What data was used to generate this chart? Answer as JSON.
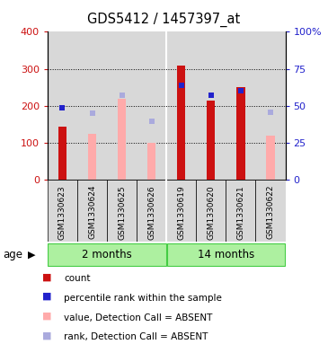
{
  "title": "GDS5412 / 1457397_at",
  "samples": [
    "GSM1330623",
    "GSM1330624",
    "GSM1330625",
    "GSM1330626",
    "GSM1330619",
    "GSM1330620",
    "GSM1330621",
    "GSM1330622"
  ],
  "count_values": [
    145,
    0,
    0,
    0,
    310,
    215,
    250,
    0
  ],
  "absent_value_bars": [
    0,
    125,
    220,
    100,
    0,
    0,
    0,
    120
  ],
  "percentile_rank": [
    195,
    0,
    0,
    0,
    255,
    228,
    240,
    0
  ],
  "absent_rank_squares": [
    0,
    180,
    228,
    158,
    0,
    0,
    0,
    183
  ],
  "ylim_left": [
    0,
    400
  ],
  "ylim_right": [
    0,
    100
  ],
  "yticks_left": [
    0,
    100,
    200,
    300,
    400
  ],
  "yticks_right": [
    0,
    25,
    50,
    75,
    100
  ],
  "ytick_labels_right": [
    "0",
    "25",
    "50",
    "75",
    "100%"
  ],
  "group_labels": [
    "2 months",
    "14 months"
  ],
  "group_ranges": [
    [
      0,
      4
    ],
    [
      4,
      8
    ]
  ],
  "age_label": "age",
  "bar_color_red": "#cc1111",
  "bar_color_pink": "#ffaaaa",
  "sq_color_blue": "#2222cc",
  "sq_color_lightblue": "#aaaadd",
  "group_color": "#adf0a0",
  "group_color_bright": "#44dd44",
  "group_border_color": "#44cc44",
  "bg_color": "#d8d8d8",
  "white": "#ffffff",
  "legend_items": [
    {
      "color": "#cc1111",
      "label": "count"
    },
    {
      "color": "#2222cc",
      "label": "percentile rank within the sample"
    },
    {
      "color": "#ffaaaa",
      "label": "value, Detection Call = ABSENT"
    },
    {
      "color": "#aaaadd",
      "label": "rank, Detection Call = ABSENT"
    }
  ]
}
